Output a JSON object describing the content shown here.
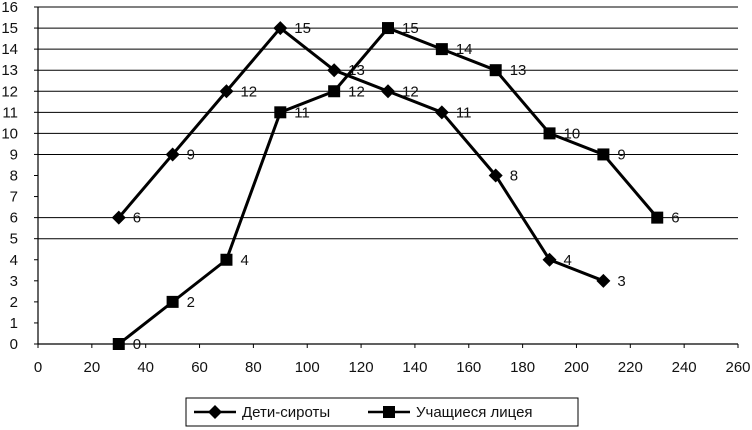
{
  "chart_data": {
    "type": "line",
    "title": "",
    "xlabel": "",
    "ylabel": "",
    "xlim": [
      0,
      260
    ],
    "ylim": [
      0,
      16
    ],
    "x_ticks": [
      "0",
      "20",
      "40",
      "60",
      "80",
      "100",
      "120",
      "140",
      "160",
      "180",
      "200",
      "220",
      "240",
      "260"
    ],
    "y_ticks": [
      "0",
      "1",
      "2",
      "3",
      "4",
      "5",
      "6",
      "7",
      "8",
      "9",
      "10",
      "11",
      "12",
      "13",
      "14",
      "15",
      "16"
    ],
    "y_grid_lines": [
      0,
      5,
      6,
      9,
      10,
      11,
      12,
      13,
      14,
      15,
      16
    ],
    "grid": "horizontal",
    "legend_position": "bottom",
    "series": [
      {
        "name": "Дети-сироты",
        "marker": "diamond",
        "color": "#000000",
        "x": [
          30,
          50,
          70,
          90,
          110,
          130,
          150,
          170,
          190,
          210
        ],
        "values": [
          6,
          9,
          12,
          15,
          13,
          12,
          11,
          8,
          4,
          3
        ],
        "labels": [
          "6",
          "9",
          "12",
          "15",
          "13",
          "12",
          "11",
          "8",
          "4",
          "3"
        ]
      },
      {
        "name": "Учащиеся лицея",
        "marker": "square",
        "color": "#000000",
        "x": [
          30,
          50,
          70,
          90,
          110,
          130,
          150,
          170,
          190,
          210,
          230
        ],
        "values": [
          0,
          2,
          4,
          11,
          12,
          15,
          14,
          13,
          10,
          9,
          6
        ],
        "labels": [
          "0",
          "2",
          "4",
          "11",
          "12",
          "15",
          "14",
          "13",
          "10",
          "9",
          "6"
        ]
      }
    ]
  }
}
